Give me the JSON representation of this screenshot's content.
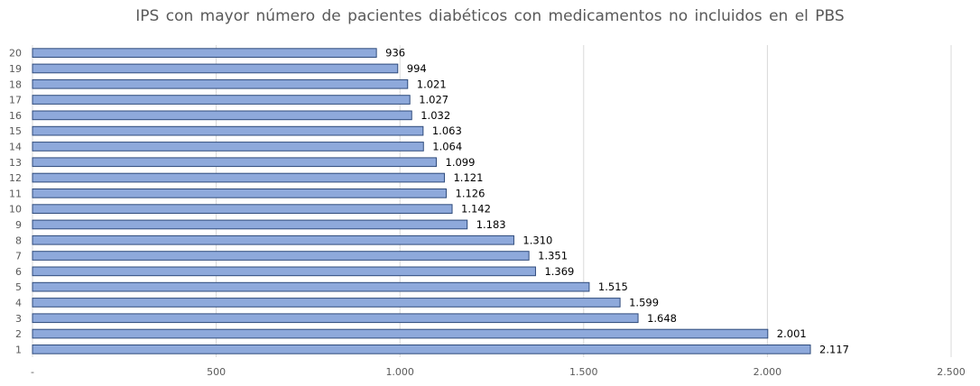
{
  "chart_data": {
    "type": "bar",
    "orientation": "horizontal",
    "title": "IPS  con mayor número de pacientes  diabéticos  con medicamentos  no incluidos  en el PBS",
    "xlabel": "",
    "ylabel": "",
    "categories": [
      "1",
      "2",
      "3",
      "4",
      "5",
      "6",
      "7",
      "8",
      "9",
      "10",
      "11",
      "12",
      "13",
      "14",
      "15",
      "16",
      "17",
      "18",
      "19",
      "20"
    ],
    "values": [
      2117,
      2001,
      1648,
      1599,
      1515,
      1369,
      1351,
      1310,
      1183,
      1142,
      1126,
      1121,
      1099,
      1064,
      1063,
      1032,
      1027,
      1021,
      994,
      936
    ],
    "value_labels": [
      "2.117",
      "2.001",
      "1.648",
      "1.599",
      "1.515",
      "1.369",
      "1.351",
      "1.310",
      "1.183",
      "1.142",
      "1.126",
      "1.121",
      "1.099",
      "1.064",
      "1.063",
      "1.032",
      "1.027",
      "1.021",
      "994",
      "936"
    ],
    "xlim": [
      0,
      2500
    ],
    "x_ticks": [
      0,
      500,
      1000,
      1500,
      2000,
      2500
    ],
    "x_tick_labels": [
      "-",
      "500",
      "1.000",
      "1.500",
      "2.000",
      "2.500"
    ],
    "grid": true,
    "legend": "none",
    "colors": {
      "bar_fill": "#8EA9DB",
      "bar_stroke": "#2F4B7C",
      "grid": "#D9D9D9"
    }
  }
}
